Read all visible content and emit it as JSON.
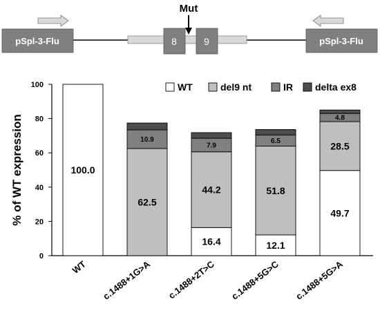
{
  "diagram": {
    "left_vector_label": "pSpl-3-Flu",
    "right_vector_label": "pSpl-3-Flu",
    "exon_left_label": "8",
    "exon_right_label": "9",
    "mutation_label": "Mut"
  },
  "chart_data": {
    "type": "bar",
    "stacked": true,
    "ylabel": "% of WT expression",
    "xlabel": "",
    "ylim": [
      0,
      100
    ],
    "yticks": [
      0,
      20,
      40,
      60,
      80,
      100
    ],
    "grid": false,
    "legend_position": "top-right",
    "categories": [
      "WT",
      "c.1488+1G>A",
      "c.1488+2T>C",
      "c.1488+5G>C",
      "c.1488+5G>A"
    ],
    "series": [
      {
        "name": "WT",
        "color": "#ffffff",
        "values": [
          100.0,
          0,
          16.4,
          12.1,
          49.7
        ],
        "labels": [
          "100.0",
          "",
          "16.4",
          "12.1",
          "49.7"
        ]
      },
      {
        "name": "del9 nt",
        "color": "#bfbfbf",
        "values": [
          0,
          62.5,
          44.2,
          51.8,
          28.5
        ],
        "labels": [
          "",
          "62.5",
          "44.2",
          "51.8",
          "28.5"
        ]
      },
      {
        "name": "IR",
        "color": "#808080",
        "values": [
          0,
          10.9,
          7.9,
          6.5,
          4.8
        ],
        "labels": [
          "",
          "10.9",
          "7.9",
          "6.5",
          "4.8"
        ]
      },
      {
        "name": "delta ex8",
        "color": "#4d4d4d",
        "values": [
          0,
          4.0,
          3.3,
          3.2,
          2.0
        ],
        "labels": [
          "",
          "",
          "",
          "",
          ""
        ]
      }
    ]
  }
}
